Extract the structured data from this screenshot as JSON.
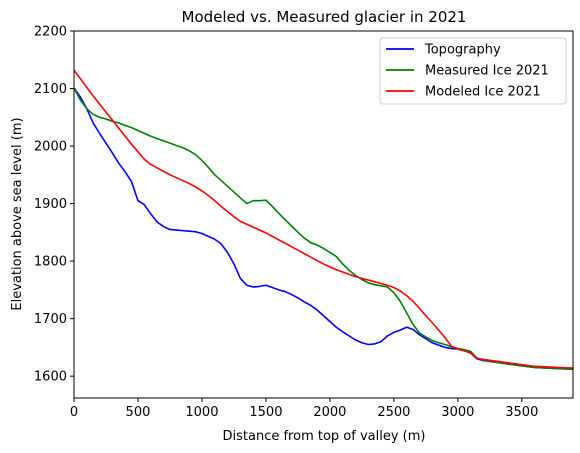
{
  "chart_data": {
    "type": "line",
    "title": "Modeled vs. Measured glacier in 2021",
    "xlabel": "Distance from top of valley (m)",
    "ylabel": "Elevation above sea level (m)",
    "xlim": [
      0,
      3900
    ],
    "ylim": [
      1562,
      2200
    ],
    "xticks": [
      0,
      500,
      1000,
      1500,
      2000,
      2500,
      3000,
      3500
    ],
    "yticks": [
      1600,
      1700,
      1800,
      1900,
      2000,
      2100,
      2200
    ],
    "grid": false,
    "legend_position": "top-right",
    "series": [
      {
        "name": "Topography",
        "color": "#0000ff",
        "x": [
          0,
          50,
          100,
          150,
          200,
          250,
          300,
          350,
          400,
          450,
          500,
          550,
          600,
          650,
          700,
          750,
          800,
          850,
          900,
          950,
          1000,
          1050,
          1100,
          1150,
          1200,
          1250,
          1300,
          1350,
          1400,
          1450,
          1500,
          1550,
          1600,
          1650,
          1700,
          1750,
          1800,
          1850,
          1900,
          1950,
          2000,
          2050,
          2100,
          2150,
          2200,
          2250,
          2300,
          2350,
          2400,
          2450,
          2500,
          2550,
          2600,
          2650,
          2700,
          2750,
          2800,
          2850,
          2900,
          2950,
          3000,
          3050,
          3100,
          3150,
          3200,
          3300,
          3400,
          3500,
          3600,
          3700,
          3800,
          3900
        ],
        "y": [
          2101,
          2085,
          2065,
          2040,
          2022,
          2005,
          1988,
          1970,
          1955,
          1938,
          1905,
          1898,
          1882,
          1868,
          1860,
          1855,
          1854,
          1853,
          1852,
          1851,
          1848,
          1843,
          1838,
          1830,
          1815,
          1795,
          1770,
          1758,
          1755,
          1756,
          1758,
          1754,
          1750,
          1747,
          1742,
          1736,
          1729,
          1723,
          1715,
          1705,
          1695,
          1685,
          1677,
          1670,
          1663,
          1658,
          1655,
          1656,
          1660,
          1670,
          1676,
          1680,
          1685,
          1681,
          1672,
          1665,
          1658,
          1654,
          1650,
          1648,
          1647,
          1645,
          1640,
          1630,
          1627,
          1624,
          1621,
          1618,
          1615,
          1614,
          1613,
          1612
        ]
      },
      {
        "name": "Measured Ice 2021",
        "color": "#008000",
        "x": [
          0,
          50,
          100,
          150,
          200,
          250,
          300,
          350,
          400,
          450,
          500,
          550,
          600,
          650,
          700,
          750,
          800,
          850,
          900,
          950,
          1000,
          1050,
          1100,
          1150,
          1200,
          1250,
          1300,
          1350,
          1400,
          1450,
          1500,
          1550,
          1600,
          1650,
          1700,
          1750,
          1800,
          1850,
          1900,
          1950,
          2000,
          2050,
          2100,
          2150,
          2200,
          2250,
          2300,
          2350,
          2400,
          2450,
          2500,
          2550,
          2600,
          2650,
          2700,
          2750,
          2800,
          2850,
          2900,
          2950,
          3000,
          3050,
          3100,
          3150,
          3200,
          3300,
          3400,
          3500,
          3600,
          3700,
          3800,
          3900
        ],
        "y": [
          2101,
          2080,
          2065,
          2055,
          2050,
          2047,
          2043,
          2040,
          2036,
          2032,
          2027,
          2022,
          2017,
          2013,
          2009,
          2005,
          2001,
          1997,
          1992,
          1985,
          1975,
          1963,
          1950,
          1940,
          1930,
          1920,
          1910,
          1900,
          1905,
          1905,
          1906,
          1895,
          1883,
          1872,
          1861,
          1850,
          1840,
          1832,
          1828,
          1822,
          1815,
          1808,
          1795,
          1784,
          1775,
          1768,
          1762,
          1759,
          1757,
          1755,
          1745,
          1730,
          1710,
          1690,
          1675,
          1668,
          1662,
          1658,
          1655,
          1651,
          1648,
          1646,
          1643,
          1631,
          1628,
          1624,
          1621,
          1618,
          1615,
          1614,
          1613,
          1612
        ]
      },
      {
        "name": "Modeled Ice 2021",
        "color": "#ff0000",
        "x": [
          0,
          50,
          100,
          150,
          200,
          250,
          300,
          350,
          400,
          450,
          500,
          550,
          600,
          650,
          700,
          750,
          800,
          850,
          900,
          950,
          1000,
          1050,
          1100,
          1150,
          1200,
          1250,
          1300,
          1350,
          1400,
          1450,
          1500,
          1550,
          1600,
          1650,
          1700,
          1750,
          1800,
          1850,
          1900,
          1950,
          2000,
          2050,
          2100,
          2150,
          2200,
          2250,
          2300,
          2350,
          2400,
          2450,
          2500,
          2550,
          2600,
          2650,
          2700,
          2750,
          2800,
          2850,
          2900,
          2950,
          3000,
          3050,
          3100,
          3150,
          3200,
          3300,
          3400,
          3500,
          3600,
          3700,
          3800,
          3900
        ],
        "y": [
          2132,
          2117,
          2102,
          2087,
          2073,
          2059,
          2045,
          2031,
          2017,
          2003,
          1990,
          1977,
          1968,
          1962,
          1956,
          1950,
          1945,
          1940,
          1935,
          1929,
          1922,
          1914,
          1905,
          1895,
          1886,
          1877,
          1869,
          1864,
          1859,
          1854,
          1849,
          1843,
          1837,
          1831,
          1825,
          1819,
          1813,
          1807,
          1801,
          1795,
          1790,
          1785,
          1781,
          1777,
          1773,
          1770,
          1767,
          1764,
          1761,
          1758,
          1754,
          1748,
          1740,
          1730,
          1718,
          1705,
          1693,
          1680,
          1667,
          1652,
          1647,
          1644,
          1640,
          1631,
          1629,
          1626,
          1623,
          1620,
          1617,
          1616,
          1615,
          1614
        ]
      }
    ]
  }
}
